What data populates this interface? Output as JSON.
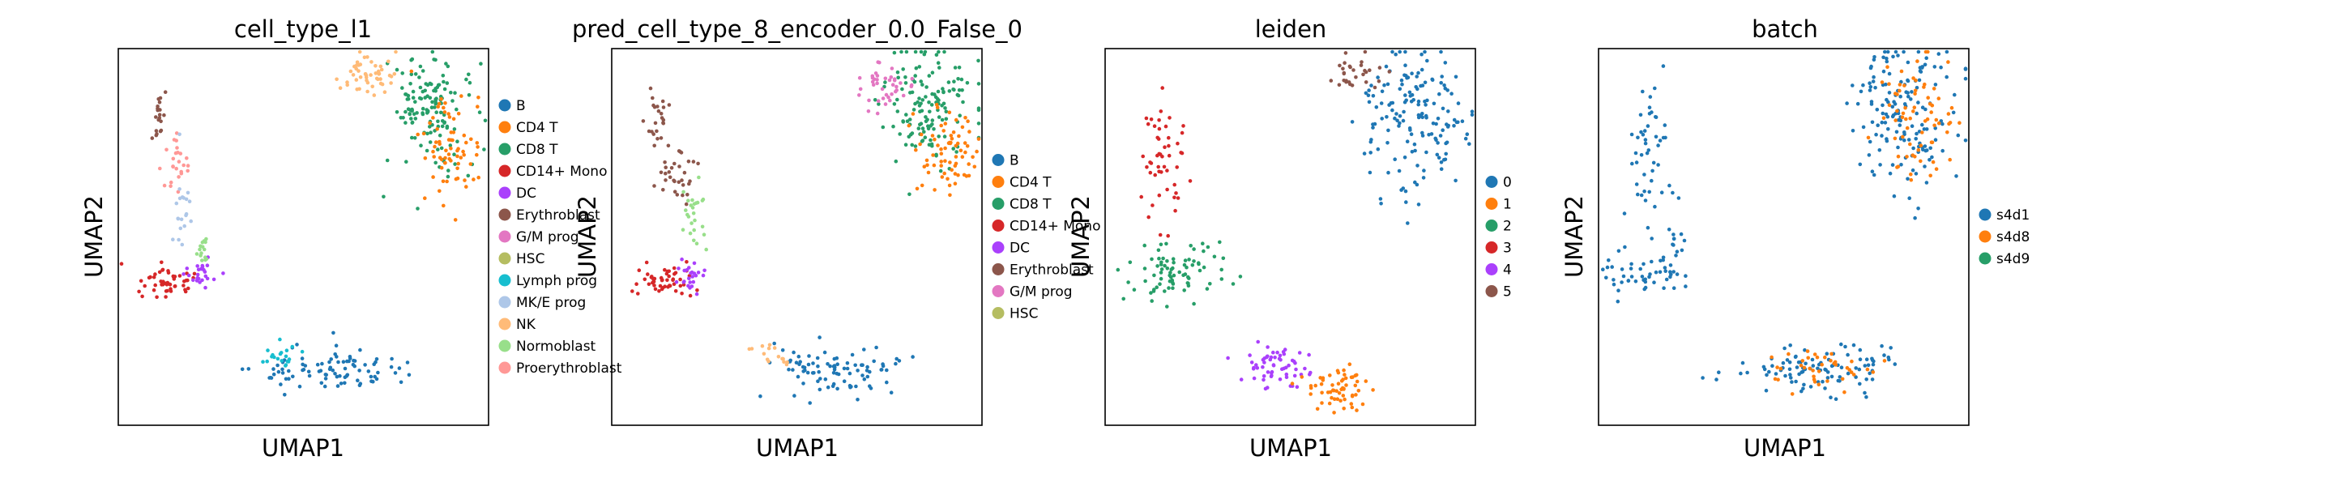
{
  "colors": {
    "tab": [
      "#1f77b4",
      "#ff7f0e",
      "#279e68",
      "#d62728",
      "#aa40fc",
      "#8c564b",
      "#e377c2",
      "#b5bd61",
      "#17becf",
      "#aec7e8",
      "#ffbb78",
      "#98df8a",
      "#ff9896"
    ]
  },
  "chart_data": [
    {
      "type": "scatter",
      "title": "cell_type_l1",
      "xlabel": "UMAP1",
      "ylabel": "UMAP2",
      "ticks": "none",
      "legend_placement": "right",
      "legend": [
        "B",
        "CD4 T",
        "CD8 T",
        "CD14+ Mono",
        "DC",
        "Erythroblast",
        "G/M prog",
        "HSC",
        "Lymph prog",
        "MK/E prog",
        "NK",
        "Normoblast",
        "Proerythroblast"
      ]
    },
    {
      "type": "scatter",
      "title": "pred_cell_type_8_encoder_0.0_False_0",
      "xlabel": "UMAP1",
      "ylabel": "UMAP2",
      "ticks": "none",
      "legend_placement": "right",
      "legend": [
        "B",
        "CD4 T",
        "CD8 T",
        "CD14+ Mono",
        "DC",
        "Erythroblast",
        "G/M prog",
        "HSC"
      ]
    },
    {
      "type": "scatter",
      "title": "leiden",
      "xlabel": "UMAP1",
      "ylabel": "UMAP2",
      "ticks": "none",
      "legend_placement": "right",
      "legend": [
        "0",
        "1",
        "2",
        "3",
        "4",
        "5"
      ]
    },
    {
      "type": "scatter",
      "title": "batch",
      "xlabel": "UMAP1",
      "ylabel": "UMAP2",
      "ticks": "none",
      "legend_placement": "right",
      "legend": [
        "s4d1",
        "s4d8",
        "s4d9"
      ]
    }
  ]
}
